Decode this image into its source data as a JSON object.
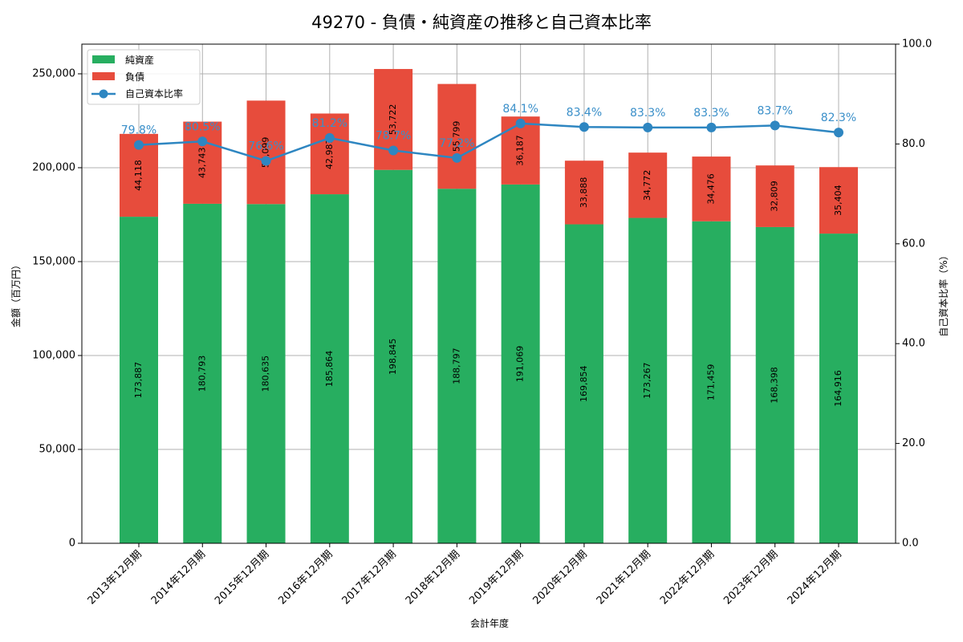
{
  "chart_data": {
    "type": "bar",
    "title": "49270 - 負債・純資産の推移と自己資本比率",
    "xlabel": "会計年度",
    "ylabel": "金額（百万円）",
    "y2label": "自己資本比率（%）",
    "ylim": [
      0,
      265800
    ],
    "y2lim": [
      0,
      100
    ],
    "yticks": [
      0,
      50000,
      100000,
      150000,
      200000,
      250000
    ],
    "ytick_labels": [
      "0",
      "50,000",
      "100,000",
      "150,000",
      "200,000",
      "250,000"
    ],
    "y2ticks": [
      0,
      20,
      40,
      60,
      80,
      100
    ],
    "y2tick_labels": [
      "0.0",
      "20.0",
      "40.0",
      "60.0",
      "80.0",
      "100.0"
    ],
    "grid": true,
    "legend_position": "upper left",
    "stacked": true,
    "categories": [
      "2013年12月期",
      "2014年12月期",
      "2015年12月期",
      "2016年12月期",
      "2017年12月期",
      "2018年12月期",
      "2019年12月期",
      "2020年12月期",
      "2021年12月期",
      "2022年12月期",
      "2023年12月期",
      "2024年12月期"
    ],
    "series": [
      {
        "name": "純資産",
        "type": "bar",
        "color": "#27ae60",
        "values": [
          173887,
          180793,
          180635,
          185864,
          198845,
          188797,
          191069,
          169854,
          173267,
          171459,
          168398,
          164916
        ],
        "labels": [
          "173,887",
          "180,793",
          "180,635",
          "185,864",
          "198,845",
          "188,797",
          "191,069",
          "169,854",
          "173,267",
          "171,459",
          "168,398",
          "164,916"
        ]
      },
      {
        "name": "負債",
        "type": "bar",
        "color": "#e74c3c",
        "values": [
          44118,
          43743,
          55099,
          42987,
          53722,
          55799,
          36187,
          33888,
          34772,
          34476,
          32809,
          35404
        ],
        "labels": [
          "44,118",
          "43,743",
          "55,099",
          "42,987",
          "53,722",
          "55,799",
          "36,187",
          "33,888",
          "34,772",
          "34,476",
          "32,809",
          "35,404"
        ]
      },
      {
        "name": "自己資本比率",
        "type": "line",
        "axis": "right",
        "color": "#2e86c1",
        "values": [
          79.8,
          80.5,
          76.6,
          81.2,
          78.7,
          77.2,
          84.1,
          83.4,
          83.3,
          83.3,
          83.7,
          82.3
        ],
        "labels": [
          "79.8%",
          "80.5%",
          "76.6%",
          "81.2%",
          "78.7%",
          "77.2%",
          "84.1%",
          "83.4%",
          "83.3%",
          "83.3%",
          "83.7%",
          "82.3%"
        ]
      }
    ]
  }
}
